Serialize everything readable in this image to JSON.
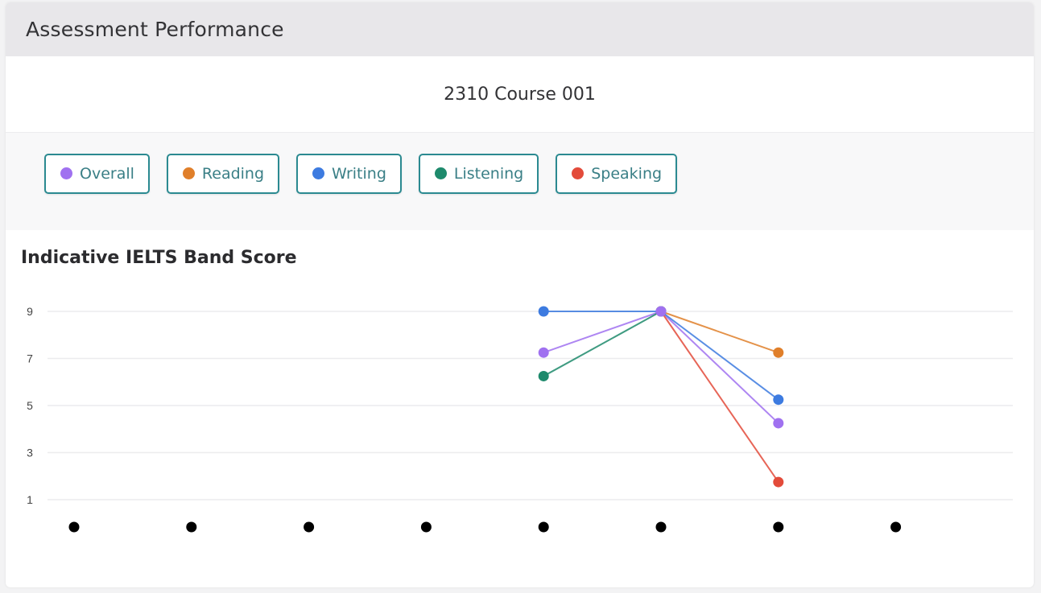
{
  "header": {
    "title": "Assessment Performance"
  },
  "course": {
    "name": "2310 Course 001"
  },
  "legend": {
    "items": [
      {
        "label": "Overall",
        "color": "#a071f0"
      },
      {
        "label": "Reading",
        "color": "#e07f2a"
      },
      {
        "label": "Writing",
        "color": "#3d7be0"
      },
      {
        "label": "Listening",
        "color": "#1e8a6c"
      },
      {
        "label": "Speaking",
        "color": "#e34b3a"
      }
    ],
    "border_color": "#2b8a91"
  },
  "chart": {
    "title": "Indicative IELTS Band Score"
  },
  "chart_data": {
    "type": "line",
    "title": "Indicative IELTS Band Score",
    "xlabel": "",
    "ylabel": "",
    "ylim": [
      1,
      9
    ],
    "yticks": [
      9,
      7,
      5,
      3,
      1
    ],
    "grid": true,
    "legend_position": "top",
    "x": [
      1,
      2,
      3,
      4,
      5,
      6,
      7,
      8
    ],
    "x_tick_labels": [
      "•",
      "•",
      "•",
      "•",
      "•",
      "•",
      "•",
      "•"
    ],
    "series": [
      {
        "name": "Overall",
        "color": "#a071f0",
        "values": [
          null,
          null,
          null,
          null,
          7.25,
          9,
          4.25,
          null
        ]
      },
      {
        "name": "Reading",
        "color": "#e07f2a",
        "values": [
          null,
          null,
          null,
          null,
          null,
          9,
          7.25,
          null
        ]
      },
      {
        "name": "Writing",
        "color": "#3d7be0",
        "values": [
          null,
          null,
          null,
          null,
          9,
          9,
          5.25,
          null
        ]
      },
      {
        "name": "Listening",
        "color": "#1e8a6c",
        "values": [
          null,
          null,
          null,
          null,
          6.25,
          9,
          null,
          null
        ]
      },
      {
        "name": "Speaking",
        "color": "#e34b3a",
        "values": [
          null,
          null,
          null,
          null,
          null,
          9,
          1.75,
          null
        ]
      }
    ]
  }
}
